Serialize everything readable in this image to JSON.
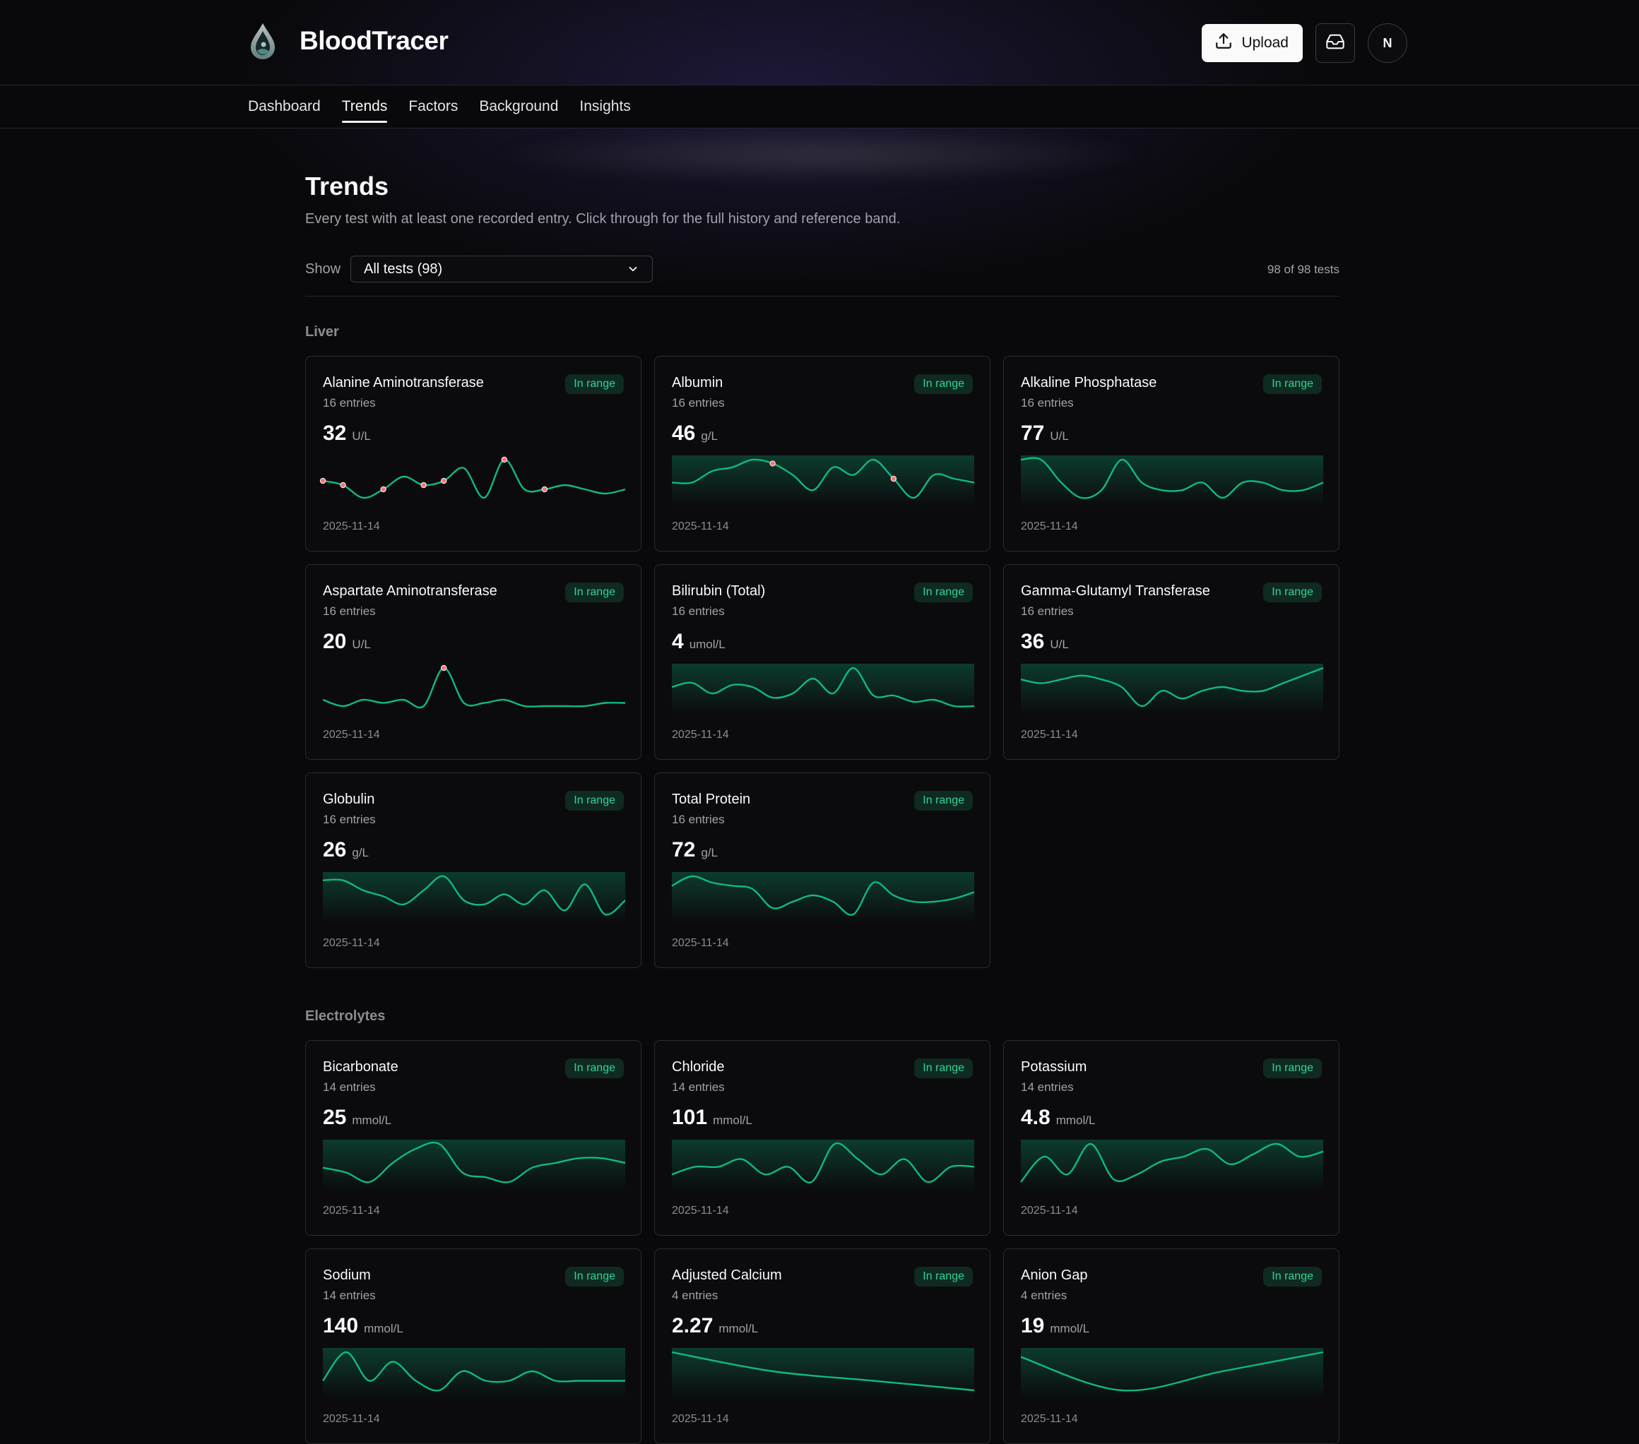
{
  "app": {
    "name": "BloodTracer"
  },
  "header": {
    "upload_label": "Upload",
    "avatar_initial": "N"
  },
  "nav": {
    "tabs": [
      "Dashboard",
      "Trends",
      "Factors",
      "Background",
      "Insights"
    ],
    "active": "Trends"
  },
  "page": {
    "title": "Trends",
    "subtitle": "Every test with at least one recorded entry. Click through for the full history and reference band.",
    "show_label": "Show",
    "filter_value": "All tests (98)",
    "count": "98 of 98 tests"
  },
  "colors": {
    "accent": "#10b981",
    "badge_text": "#34d399",
    "badge_bg": "#0f2a21",
    "flag_point": "#f87171"
  },
  "sections": [
    {
      "title": "Liver",
      "cards": [
        {
          "name": "Alanine Aminotransferase",
          "entries": "16 entries",
          "status": "In range",
          "value": "32",
          "unit": "U/L",
          "date": "2025-11-14",
          "band": false,
          "series": [
            40,
            39,
            36,
            38,
            41,
            39,
            40,
            43,
            36,
            45,
            38,
            38,
            39,
            38,
            37,
            38
          ],
          "flagged": [
            0,
            1,
            3,
            5,
            6,
            9,
            11
          ]
        },
        {
          "name": "Albumin",
          "entries": "16 entries",
          "status": "In range",
          "value": "46",
          "unit": "g/L",
          "date": "2025-11-14",
          "band": true,
          "series": [
            45,
            45,
            45.3,
            45.4,
            45.6,
            45.5,
            45.2,
            44.8,
            45.4,
            45.2,
            45.6,
            45.1,
            44.6,
            45.2,
            45.1,
            45
          ],
          "flagged": [
            5,
            11
          ]
        },
        {
          "name": "Alkaline Phosphatase",
          "entries": "16 entries",
          "status": "In range",
          "value": "77",
          "unit": "U/L",
          "date": "2025-11-14",
          "band": true,
          "series": [
            77,
            77,
            74,
            72,
            73,
            77,
            74,
            73,
            73,
            74,
            72,
            74,
            74,
            73,
            73,
            74
          ],
          "flagged": []
        },
        {
          "name": "Aspartate Aminotransferase",
          "entries": "16 entries",
          "status": "In range",
          "value": "20",
          "unit": "U/L",
          "date": "2025-11-14",
          "band": false,
          "series": [
            22,
            20,
            22,
            21,
            22,
            20,
            32,
            21,
            21,
            22,
            20,
            20,
            20,
            20,
            21,
            21
          ],
          "flagged": [
            6
          ]
        },
        {
          "name": "Bilirubin (Total)",
          "entries": "16 entries",
          "status": "In range",
          "value": "4",
          "unit": "umol/L",
          "date": "2025-11-14",
          "band": true,
          "series": [
            5.2,
            5.4,
            4.9,
            5.3,
            5.2,
            4.7,
            4.9,
            5.6,
            4.9,
            6.1,
            4.8,
            4.8,
            4.5,
            4.6,
            4.3,
            4.3
          ],
          "flagged": []
        },
        {
          "name": "Gamma-Glutamyl Transferase",
          "entries": "16 entries",
          "status": "In range",
          "value": "36",
          "unit": "U/L",
          "date": "2025-11-14",
          "band": true,
          "series": [
            36,
            35,
            36,
            37,
            36,
            34,
            29,
            33,
            31,
            33,
            34,
            33,
            33,
            35,
            37,
            39
          ],
          "flagged": []
        },
        {
          "name": "Globulin",
          "entries": "16 entries",
          "status": "In range",
          "value": "26",
          "unit": "g/L",
          "date": "2025-11-14",
          "band": true,
          "series": [
            27,
            27,
            26.5,
            26.2,
            25.8,
            26.5,
            27.2,
            26,
            25.8,
            26.3,
            25.8,
            26.5,
            25.5,
            26.8,
            25.3,
            26
          ],
          "flagged": []
        },
        {
          "name": "Total Protein",
          "entries": "16 entries",
          "status": "In range",
          "value": "72",
          "unit": "g/L",
          "date": "2025-11-14",
          "band": true,
          "series": [
            72.5,
            72.8,
            72.6,
            72.5,
            72.4,
            71.8,
            72,
            72.2,
            72,
            71.6,
            72.6,
            72.2,
            72,
            72,
            72.1,
            72.3
          ],
          "flagged": []
        }
      ]
    },
    {
      "title": "Electrolytes",
      "cards": [
        {
          "name": "Bicarbonate",
          "entries": "14 entries",
          "status": "In range",
          "value": "25",
          "unit": "mmol/L",
          "date": "2025-11-14",
          "band": true,
          "series": [
            25.5,
            25.4,
            25.2,
            25.6,
            25.9,
            26,
            25.4,
            25.3,
            25.2,
            25.5,
            25.6,
            25.7,
            25.7,
            25.6
          ],
          "flagged": []
        },
        {
          "name": "Chloride",
          "entries": "14 entries",
          "status": "In range",
          "value": "101",
          "unit": "mmol/L",
          "date": "2025-11-14",
          "band": true,
          "series": [
            101.4,
            101.5,
            101.5,
            101.6,
            101.4,
            101.5,
            101.3,
            101.8,
            101.6,
            101.4,
            101.6,
            101.3,
            101.5,
            101.5
          ],
          "flagged": []
        },
        {
          "name": "Potassium",
          "entries": "14 entries",
          "status": "In range",
          "value": "4.8",
          "unit": "mmol/L",
          "date": "2025-11-14",
          "band": true,
          "series": [
            4.75,
            4.85,
            4.78,
            4.9,
            4.76,
            4.78,
            4.83,
            4.85,
            4.88,
            4.82,
            4.86,
            4.9,
            4.85,
            4.87
          ],
          "flagged": []
        },
        {
          "name": "Sodium",
          "entries": "14 entries",
          "status": "In range",
          "value": "140",
          "unit": "mmol/L",
          "date": "2025-11-14",
          "band": true,
          "series": [
            140.2,
            140.5,
            140.2,
            140.4,
            140.2,
            140.1,
            140.3,
            140.2,
            140.2,
            140.3,
            140.2,
            140.2,
            140.2,
            140.2
          ],
          "flagged": []
        },
        {
          "name": "Adjusted Calcium",
          "entries": "4 entries",
          "status": "In range",
          "value": "2.27",
          "unit": "mmol/L",
          "date": "2025-11-14",
          "band": true,
          "series": [
            2.32,
            2.3,
            2.29,
            2.28
          ],
          "flagged": []
        },
        {
          "name": "Anion Gap",
          "entries": "4 entries",
          "status": "In range",
          "value": "19",
          "unit": "mmol/L",
          "date": "2025-11-14",
          "band": true,
          "series": [
            19.5,
            18.8,
            19.2,
            19.6
          ],
          "flagged": []
        }
      ]
    }
  ]
}
